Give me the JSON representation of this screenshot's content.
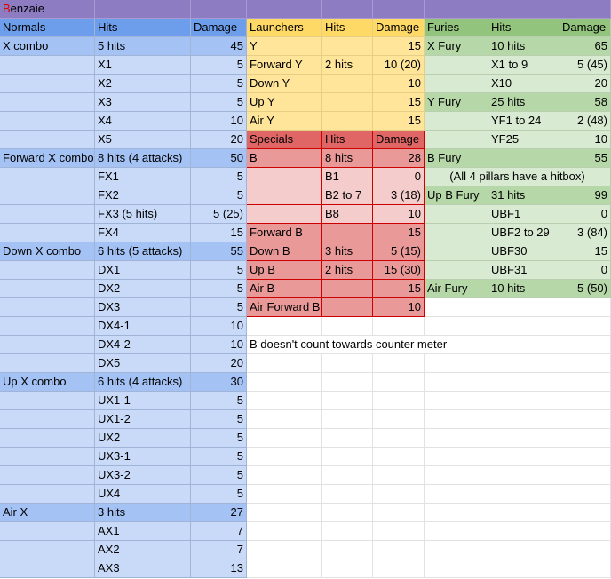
{
  "sheet": {
    "title": "Benzaie",
    "title_color": "#8e7cc3",
    "tables": [
      {
        "header": [
          "Normals",
          "Hits",
          "Damage"
        ],
        "colors": {
          "header": "#6d9eeb",
          "main": "#a4c2f4",
          "sub": "#c9daf8",
          "border": "#9fb4d6"
        },
        "rows": [
          [
            "X combo",
            "5 hits",
            45
          ],
          [
            null,
            "X1",
            5
          ],
          [
            null,
            "X2",
            5
          ],
          [
            null,
            "X3",
            5
          ],
          [
            null,
            "X4",
            10
          ],
          [
            null,
            "X5",
            20
          ],
          [
            "Forward X combo",
            "8 hits (4 attacks)",
            50
          ],
          [
            null,
            "FX1",
            5
          ],
          [
            null,
            "FX2",
            5
          ],
          [
            null,
            "FX3 (5 hits)",
            "5 (25)"
          ],
          [
            null,
            "FX4",
            15
          ],
          [
            "Down X combo",
            "6 hits (5 attacks)",
            55
          ],
          [
            null,
            "DX1",
            5
          ],
          [
            null,
            "DX2",
            5
          ],
          [
            null,
            "DX3",
            5
          ],
          [
            null,
            "DX4-1",
            10
          ],
          [
            null,
            "DX4-2",
            10
          ],
          [
            null,
            "DX5",
            20
          ],
          [
            "Up X combo",
            "6 hits (4 attacks)",
            30
          ],
          [
            null,
            "UX1-1",
            5
          ],
          [
            null,
            "UX1-2",
            5
          ],
          [
            null,
            "UX2",
            5
          ],
          [
            null,
            "UX3-1",
            5
          ],
          [
            null,
            "UX3-2",
            5
          ],
          [
            null,
            "UX4",
            5
          ],
          [
            "Air X",
            "3 hits",
            27
          ],
          [
            null,
            "AX1",
            7
          ],
          [
            null,
            "AX2",
            7
          ],
          [
            null,
            "AX3",
            13
          ]
        ]
      },
      {
        "header": [
          "Launchers",
          "Hits",
          "Damage"
        ],
        "colors": {
          "header": "#ffd966",
          "main": "#ffe599",
          "sub": "#ffe599",
          "border": "#e6cf85"
        },
        "rows": [
          [
            "Y",
            null,
            15
          ],
          [
            "Forward Y",
            "2 hits",
            "10 (20)"
          ],
          [
            "Down Y",
            null,
            10
          ],
          [
            "Up Y",
            null,
            15
          ],
          [
            "Air Y",
            null,
            15
          ]
        ]
      },
      {
        "header": [
          "Specials",
          "Hits",
          "Damage"
        ],
        "colors": {
          "header": "#e06666",
          "main": "#ea9999",
          "sub": "#f4cccc",
          "border": "#cc0000"
        },
        "rows": [
          [
            "B",
            "8 hits",
            28
          ],
          [
            null,
            "B1",
            0
          ],
          [
            null,
            "B2 to 7",
            "3 (18)"
          ],
          [
            null,
            "B8",
            10
          ],
          [
            "Forward B",
            null,
            15
          ],
          [
            "Down B",
            "3 hits",
            "5 (15)"
          ],
          [
            "Up B",
            "2 hits",
            "15 (30)"
          ],
          [
            "Air B",
            null,
            15
          ],
          [
            "Air Forward B",
            null,
            10
          ]
        ]
      },
      {
        "header": [
          "Furies",
          "Hits",
          "Damage"
        ],
        "colors": {
          "header": "#93c47d",
          "main": "#b6d7a8",
          "sub": "#d9ead3",
          "border": "#b9cfb0"
        },
        "rows": [
          [
            "X Fury",
            "10 hits",
            65
          ],
          [
            null,
            "X1 to 9",
            "5 (45)"
          ],
          [
            null,
            "X10",
            20
          ],
          [
            "Y Fury",
            "25 hits",
            58
          ],
          [
            null,
            "YF1 to 24",
            "2 (48)"
          ],
          [
            null,
            "YF25",
            10
          ],
          [
            "B Fury",
            null,
            55
          ],
          [
            "(All 4 pillars have a hitbox)"
          ],
          [
            "Up B Fury",
            "31 hits",
            99
          ],
          [
            null,
            "UBF1",
            0
          ],
          [
            null,
            "UBF2 to 29",
            "3 (84)"
          ],
          [
            null,
            "UBF30",
            15
          ],
          [
            null,
            "UBF31",
            0
          ],
          [
            "Air Fury",
            "10 hits",
            "5 (50)"
          ]
        ]
      }
    ],
    "note": "B doesn't count towards counter meter"
  }
}
